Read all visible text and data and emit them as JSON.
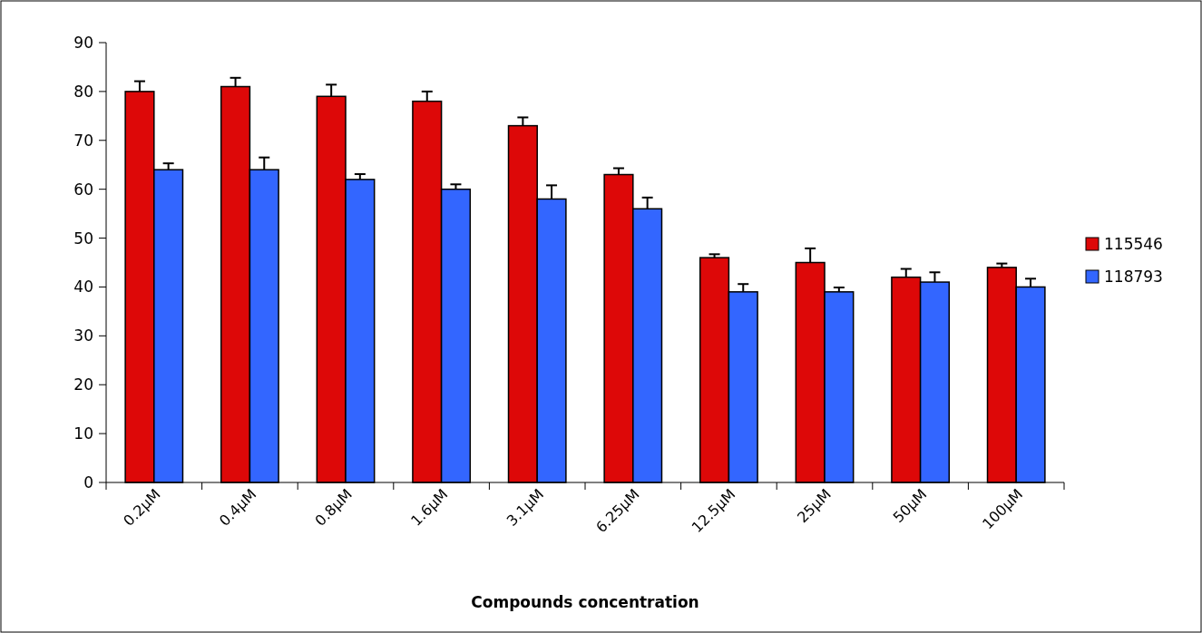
{
  "chart_data": {
    "type": "bar",
    "xlabel": "Compounds concentration",
    "categories": [
      "0.2μM",
      "0.4μM",
      "0.8μM",
      "1.6μM",
      "3.1μM",
      "6.25μM",
      "12.5μM",
      "25μM",
      "50μM",
      "100μM"
    ],
    "series": [
      {
        "name": "115546",
        "color": "#dd0808",
        "values": [
          80,
          81,
          79,
          78,
          73,
          63,
          46,
          45,
          42,
          44
        ],
        "errors": [
          [
            80,
            82.1
          ],
          [
            81,
            82.8
          ],
          [
            79,
            81.4
          ],
          [
            78,
            80
          ],
          [
            73,
            74.7
          ],
          [
            63,
            64.3
          ],
          [
            46,
            46.7
          ],
          [
            45,
            47.9
          ],
          [
            42,
            43.7
          ],
          [
            44,
            44.8
          ]
        ]
      },
      {
        "name": "118793",
        "color": "#3366ff",
        "values": [
          64,
          64,
          62,
          60,
          58,
          56,
          39,
          39,
          41,
          40
        ],
        "errors": [
          [
            64,
            65.3
          ],
          [
            64,
            66.5
          ],
          [
            62,
            63.1
          ],
          [
            60,
            61
          ],
          [
            58,
            60.8
          ],
          [
            56,
            58.3
          ],
          [
            39,
            40.6
          ],
          [
            39,
            39.9
          ],
          [
            41,
            43
          ],
          [
            40,
            41.7
          ]
        ]
      }
    ],
    "ylim": [
      0,
      90
    ],
    "yticks": [
      0,
      10,
      20,
      30,
      40,
      50,
      60,
      70,
      80,
      90
    ],
    "grid": false,
    "legend": "right"
  }
}
